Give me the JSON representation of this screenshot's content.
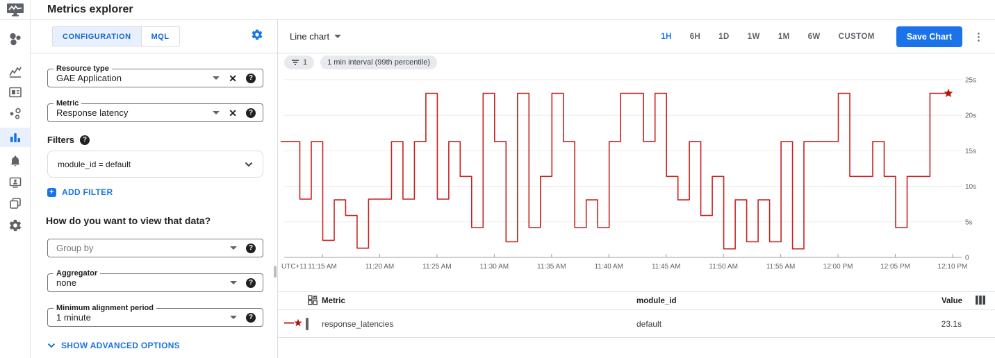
{
  "header": {
    "title": "Metrics explorer"
  },
  "sidebar": {
    "icons": [
      "monitoring-overview-icon",
      "dashboards-icon",
      "dashboard-card-icon",
      "services-icon",
      "metrics-explorer-icon",
      "alerting-bell-icon",
      "uptime-checks-icon",
      "groups-icon",
      "settings-gear-icon"
    ],
    "active_icon": "metrics-explorer-icon"
  },
  "config": {
    "tabs": [
      {
        "label": "CONFIGURATION",
        "active": true
      },
      {
        "label": "MQL",
        "active": false
      }
    ],
    "resource_type": {
      "label": "Resource type",
      "value": "GAE Application"
    },
    "metric": {
      "label": "Metric",
      "value": "Response latency"
    },
    "filters_label": "Filters",
    "filter_value": "module_id = default",
    "add_filter_label": "ADD FILTER",
    "view_question": "How do you want to view that data?",
    "group_by": {
      "placeholder": "Group by"
    },
    "aggregator": {
      "label": "Aggregator",
      "value": "none"
    },
    "min_alignment": {
      "label": "Minimum alignment period",
      "value": "1 minute"
    },
    "advanced_label": "SHOW ADVANCED OPTIONS"
  },
  "chart_header": {
    "chart_type_label": "Line chart",
    "time_ranges": [
      "1H",
      "6H",
      "1D",
      "1W",
      "1M",
      "6W",
      "CUSTOM"
    ],
    "active_range": "1H",
    "save_button_label": "Save Chart",
    "more_menu": "kebab-menu"
  },
  "chips": {
    "filter_count": "1",
    "interval_chip": "1 min interval (99th percentile)"
  },
  "chart_data": {
    "type": "line",
    "style": "step",
    "title": "",
    "xlabel": "",
    "ylabel": "",
    "ylim": [
      0,
      25
    ],
    "grid": "horizontal",
    "y_tick_labels": [
      "25s",
      "20s",
      "15s",
      "10s",
      "5s",
      "0"
    ],
    "y_tick_values": [
      25,
      20,
      15,
      10,
      5,
      0
    ],
    "x_axis_prefix_label": "UTC+11",
    "x_tick_labels": [
      "11:15 AM",
      "11:20 AM",
      "11:25 AM",
      "11:30 AM",
      "11:35 AM",
      "11:40 AM",
      "11:45 AM",
      "11:50 AM",
      "11:55 AM",
      "12:00 PM",
      "12:05 PM",
      "12:10 PM"
    ],
    "series": [
      {
        "name": "response_latencies",
        "color": "#c5221f",
        "unit": "s",
        "interval_minutes": 1,
        "last_point_marker": "star",
        "x": [
          "11:12",
          "11:13",
          "11:14",
          "11:15",
          "11:16",
          "11:17",
          "11:18",
          "11:19",
          "11:20",
          "11:21",
          "11:22",
          "11:23",
          "11:24",
          "11:25",
          "11:26",
          "11:27",
          "11:28",
          "11:29",
          "11:30",
          "11:31",
          "11:32",
          "11:33",
          "11:34",
          "11:35",
          "11:36",
          "11:37",
          "11:38",
          "11:39",
          "11:40",
          "11:41",
          "11:42",
          "11:43",
          "11:44",
          "11:45",
          "11:46",
          "11:47",
          "11:48",
          "11:49",
          "11:50",
          "11:51",
          "11:52",
          "11:53",
          "11:54",
          "11:55",
          "11:56",
          "11:57",
          "11:58",
          "11:59",
          "12:00",
          "12:01",
          "12:02",
          "12:03",
          "12:04",
          "12:05",
          "12:06",
          "12:07",
          "12:08",
          "12:09"
        ],
        "values": [
          16.3,
          8.2,
          16.3,
          2.4,
          8.1,
          5.9,
          1.3,
          8.2,
          8.2,
          16.3,
          8.2,
          16.3,
          23.1,
          8.2,
          16.3,
          11.4,
          4.2,
          23.1,
          16.3,
          2.2,
          23.1,
          4.2,
          11.4,
          23.1,
          16.3,
          4.2,
          8.1,
          4.2,
          16.3,
          23.1,
          23.1,
          16.3,
          23.1,
          11.4,
          8.1,
          16.3,
          5.9,
          11.4,
          1.2,
          8.1,
          2.2,
          8.1,
          2.2,
          16.3,
          1.2,
          16.3,
          16.3,
          16.3,
          23.1,
          11.4,
          11.4,
          16.3,
          11.4,
          4.2,
          11.4,
          11.4,
          23.1,
          23.1
        ]
      }
    ]
  },
  "table": {
    "metric_col": "Metric",
    "module_col": "module_id",
    "value_col": "Value",
    "rows": [
      {
        "metric": "response_latencies",
        "module_id": "default",
        "value": "23.1s",
        "checked": false
      }
    ]
  }
}
